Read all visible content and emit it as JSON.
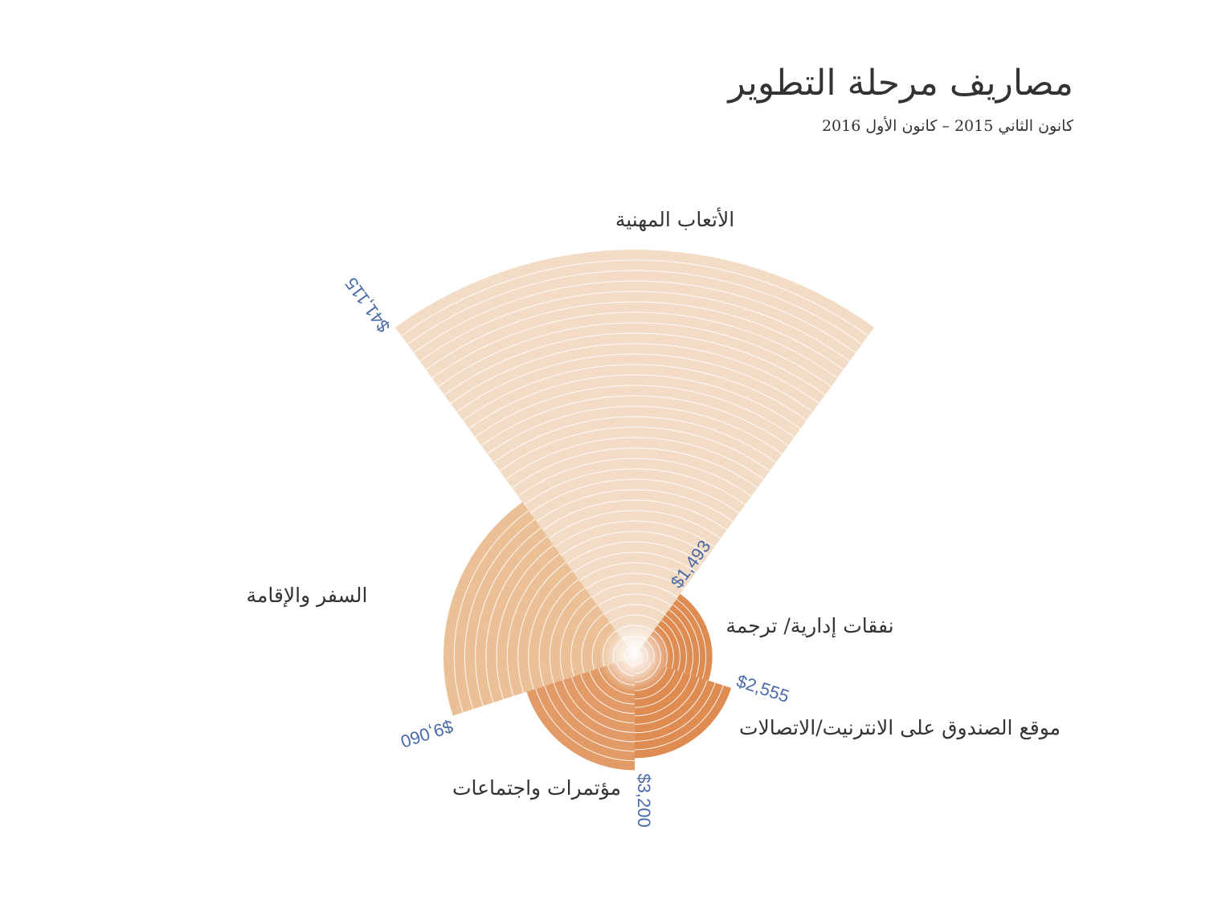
{
  "title": "مصاريف مرحلة التطوير",
  "subtitle": "كانون الثاني 2015 – كانون الأول 2016",
  "chart_data": {
    "type": "polar-area",
    "title": "مصاريف مرحلة التطوير",
    "subtitle": "كانون الثاني 2015 – كانون الأول 2016",
    "categories": [
      "الأتعاب المهنية",
      "نفقات إدارية/ ترجمة",
      "موقع الصندوق على الانترنيت/الاتصالات",
      "مؤتمرات واجتماعات",
      "السفر والإقامة"
    ],
    "values": [
      41115,
      1493,
      2555,
      3200,
      9060
    ],
    "value_labels": [
      "$41,115",
      "$1,493",
      "$2,555",
      "$3,200",
      "$9,060"
    ],
    "colors": [
      "#f2dcc6",
      "#de8c52",
      "#de8c52",
      "#e29a66",
      "#ebc096"
    ]
  }
}
